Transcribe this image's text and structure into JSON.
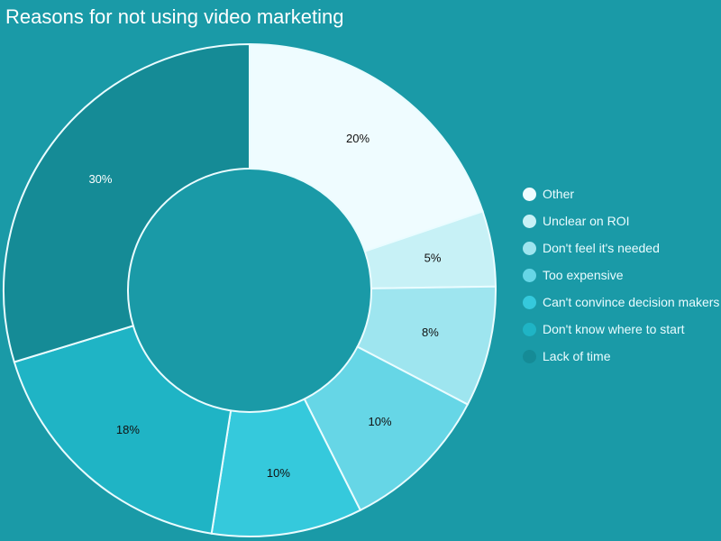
{
  "chart_data": {
    "type": "pie",
    "title": "Reasons for not using video marketing",
    "legend_position": "right",
    "categories": [
      "Other",
      "Unclear on ROI",
      "Don't feel it's needed",
      "Too expensive",
      "Can't convince decision makers",
      "Don't know where to start",
      "Lack of time"
    ],
    "values": [
      20,
      5,
      8,
      10,
      10,
      18,
      30
    ],
    "labels": [
      "20%",
      "5%",
      "8%",
      "10%",
      "10%",
      "18%",
      "30%"
    ],
    "colors": [
      "#effcff",
      "#c7f1f6",
      "#9ee5ef",
      "#66d6e6",
      "#35c9dc",
      "#1fb4c5",
      "#158b96"
    ]
  }
}
